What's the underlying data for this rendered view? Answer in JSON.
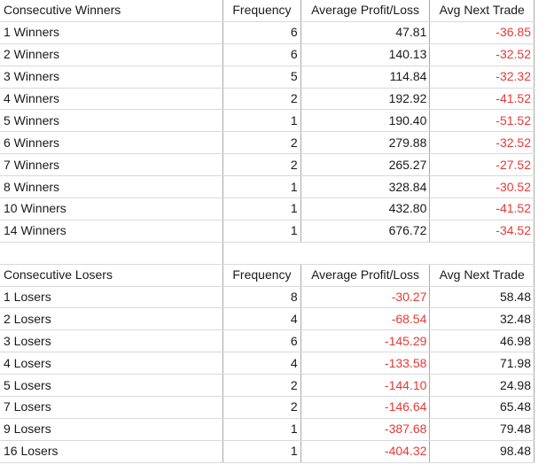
{
  "colors": {
    "negative": "#e53935",
    "text": "#1a1a1a",
    "grid_line": "#a9a9a9"
  },
  "winners": {
    "headers": [
      "Consecutive Winners",
      "Frequency",
      "Average Profit/Loss",
      "Avg Next Trade"
    ],
    "rows": [
      {
        "label": "1 Winners",
        "frequency": "6",
        "avg_pl": "47.81",
        "avg_next": "-36.85"
      },
      {
        "label": "2 Winners",
        "frequency": "6",
        "avg_pl": "140.13",
        "avg_next": "-32.52"
      },
      {
        "label": "3 Winners",
        "frequency": "5",
        "avg_pl": "114.84",
        "avg_next": "-32.32"
      },
      {
        "label": "4 Winners",
        "frequency": "2",
        "avg_pl": "192.92",
        "avg_next": "-41.52"
      },
      {
        "label": "5 Winners",
        "frequency": "1",
        "avg_pl": "190.40",
        "avg_next": "-51.52"
      },
      {
        "label": "6 Winners",
        "frequency": "2",
        "avg_pl": "279.88",
        "avg_next": "-32.52"
      },
      {
        "label": "7 Winners",
        "frequency": "2",
        "avg_pl": "265.27",
        "avg_next": "-27.52"
      },
      {
        "label": "8 Winners",
        "frequency": "1",
        "avg_pl": "328.84",
        "avg_next": "-30.52"
      },
      {
        "label": "10 Winners",
        "frequency": "1",
        "avg_pl": "432.80",
        "avg_next": "-41.52"
      },
      {
        "label": "14 Winners",
        "frequency": "1",
        "avg_pl": "676.72",
        "avg_next": "-34.52"
      }
    ]
  },
  "losers": {
    "headers": [
      "Consecutive Losers",
      "Frequency",
      "Average Profit/Loss",
      "Avg Next Trade"
    ],
    "rows": [
      {
        "label": "1 Losers",
        "frequency": "8",
        "avg_pl": "-30.27",
        "avg_next": "58.48"
      },
      {
        "label": "2 Losers",
        "frequency": "4",
        "avg_pl": "-68.54",
        "avg_next": "32.48"
      },
      {
        "label": "3 Losers",
        "frequency": "6",
        "avg_pl": "-145.29",
        "avg_next": "46.98"
      },
      {
        "label": "4 Losers",
        "frequency": "4",
        "avg_pl": "-133.58",
        "avg_next": "71.98"
      },
      {
        "label": "5 Losers",
        "frequency": "2",
        "avg_pl": "-144.10",
        "avg_next": "24.98"
      },
      {
        "label": "7 Losers",
        "frequency": "2",
        "avg_pl": "-146.64",
        "avg_next": "65.48"
      },
      {
        "label": "9 Losers",
        "frequency": "1",
        "avg_pl": "-387.68",
        "avg_next": "79.48"
      },
      {
        "label": "16 Losers",
        "frequency": "1",
        "avg_pl": "-404.32",
        "avg_next": "98.48"
      }
    ]
  }
}
